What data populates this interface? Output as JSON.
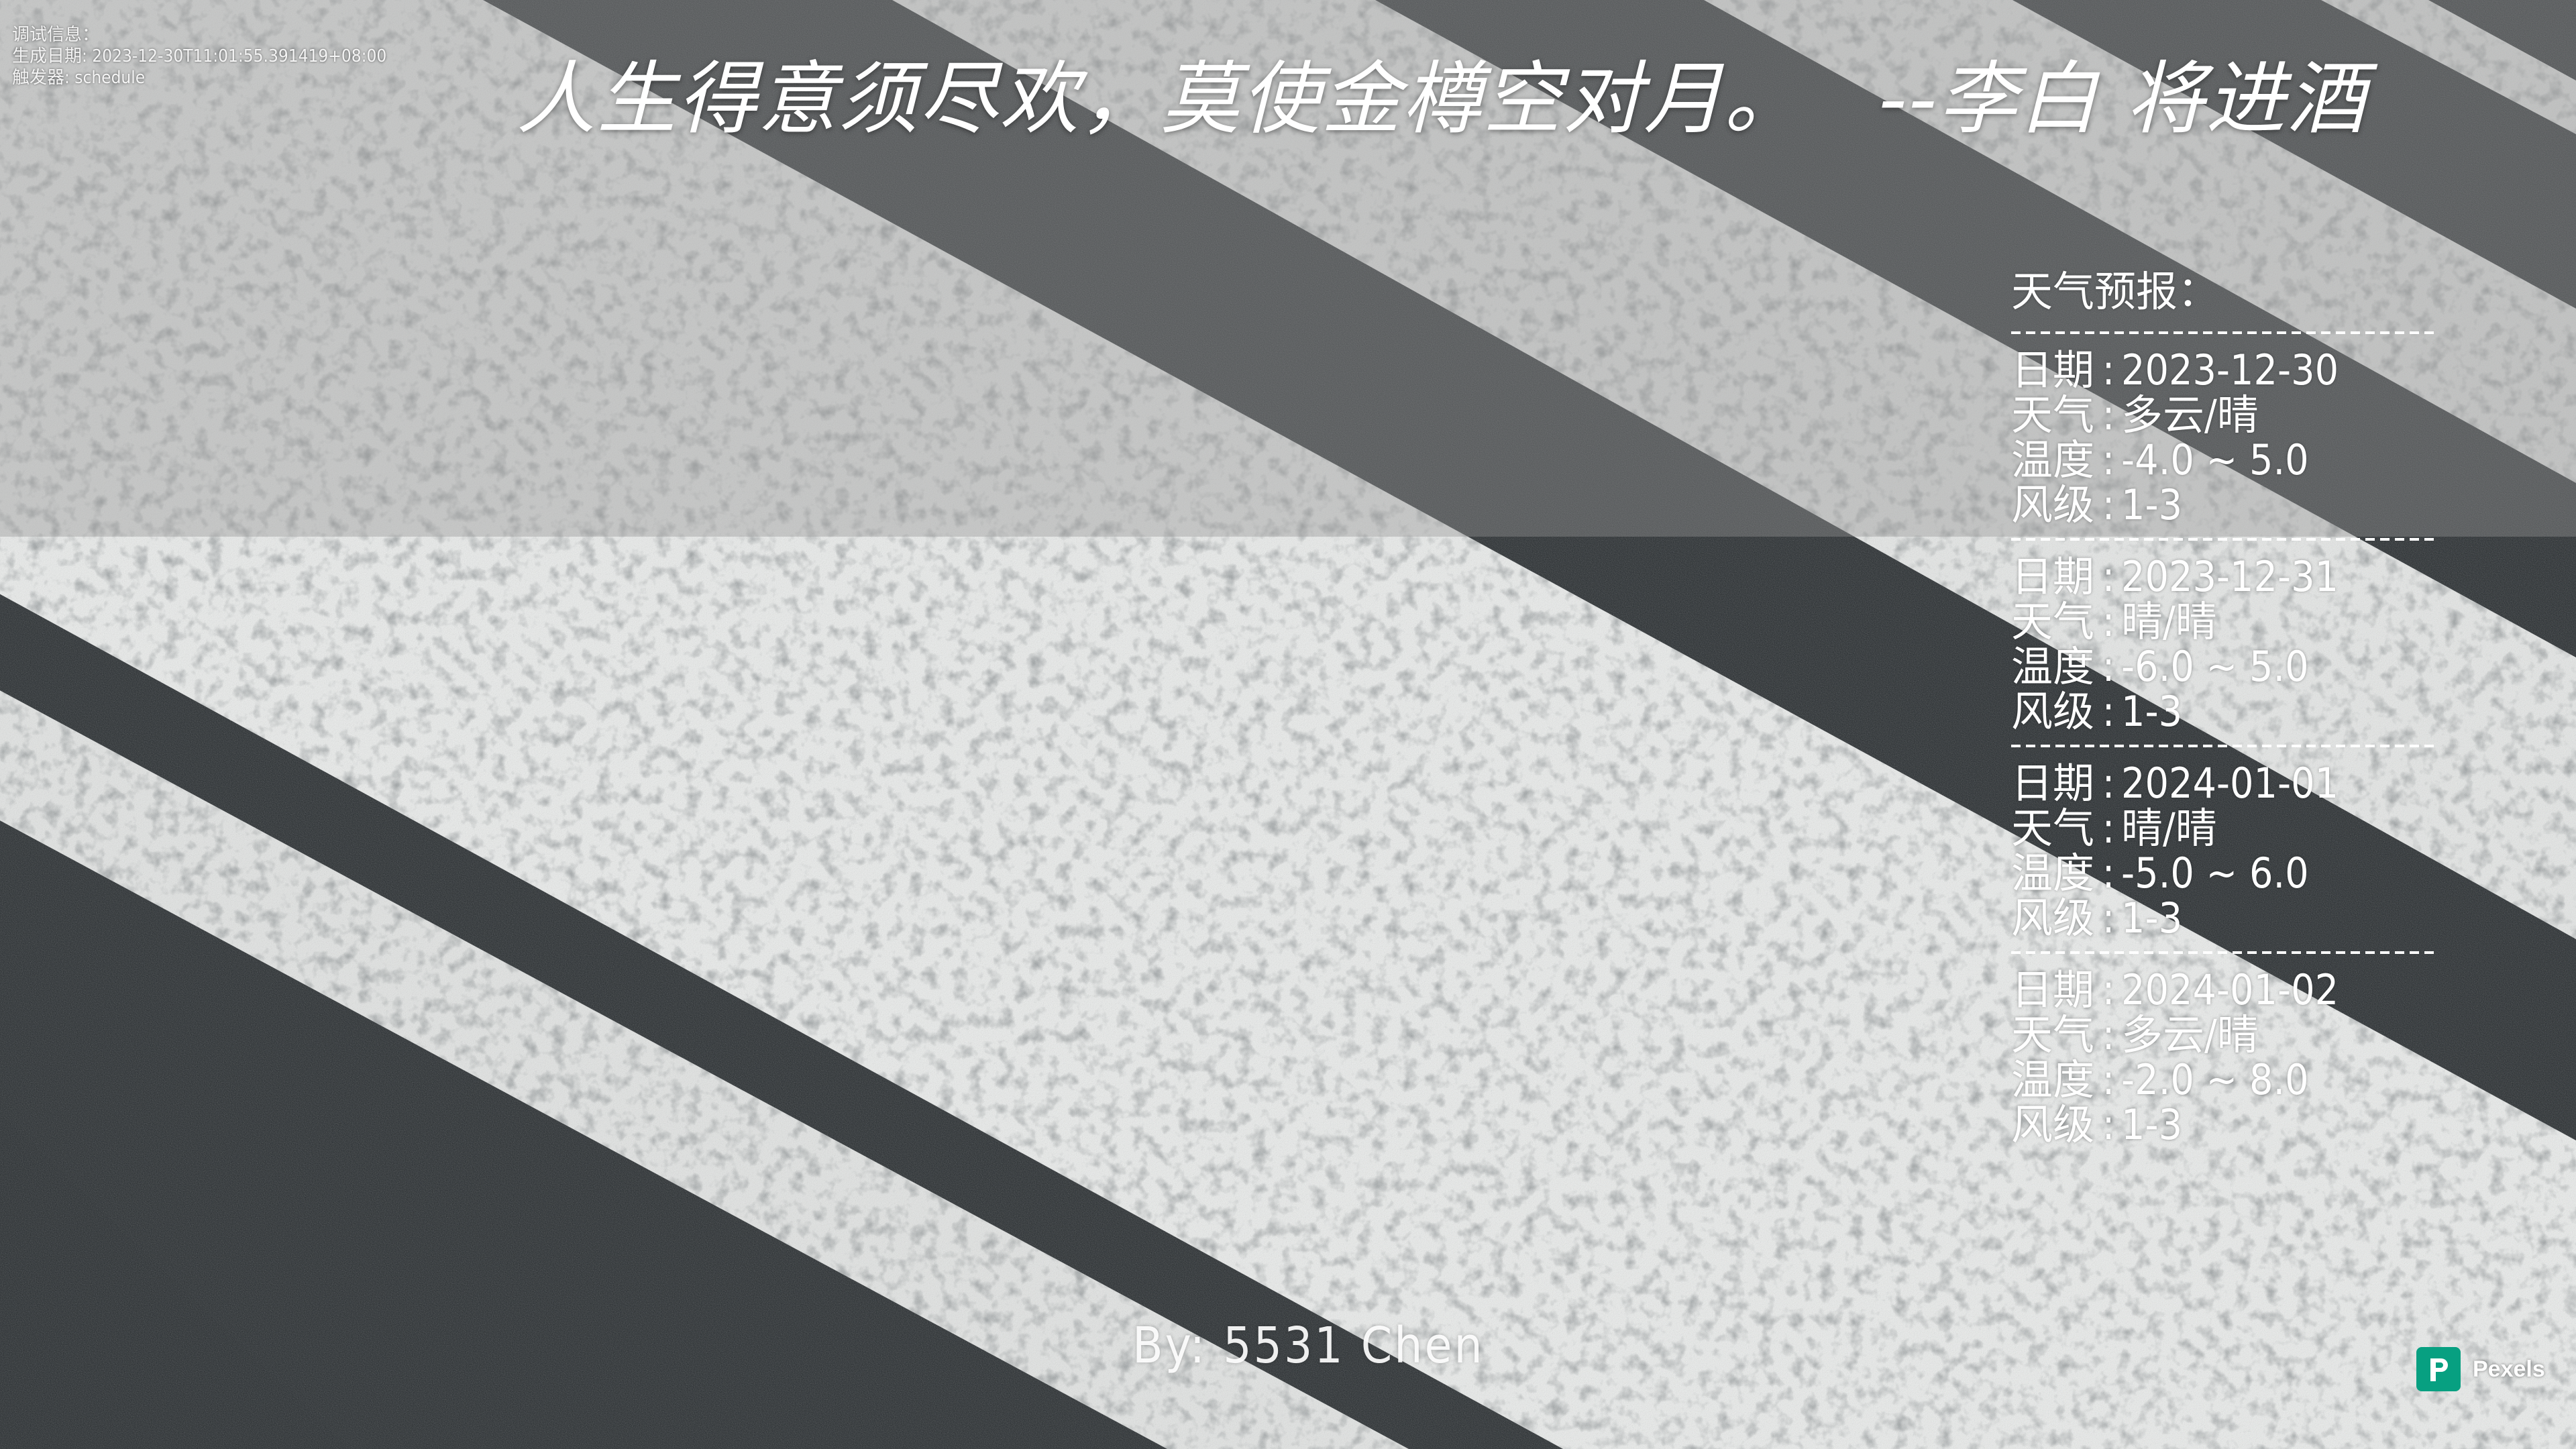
{
  "debug": {
    "line1": "调试信息：",
    "line2": "生成日期: 2023-12-30T11:01:55.391419+08:00",
    "line3": "触发器: schedule"
  },
  "quote": {
    "text": "人生得意须尽欢，莫使金樽空对月。",
    "attribution": "--李白 将进酒"
  },
  "weather": {
    "heading": "天气预报：",
    "labels": {
      "date": "日期",
      "weather": "天气",
      "temperature": "温度",
      "wind": "风级",
      "separator": ":"
    },
    "days": [
      {
        "date": "2023-12-30",
        "weather": "多云/晴",
        "temperature": "-4.0 ~ 5.0",
        "wind": "1-3"
      },
      {
        "date": "2023-12-31",
        "weather": "晴/晴",
        "temperature": "-6.0 ~ 5.0",
        "wind": "1-3"
      },
      {
        "date": "2024-01-01",
        "weather": "晴/晴",
        "temperature": "-5.0 ~ 6.0",
        "wind": "1-3"
      },
      {
        "date": "2024-01-02",
        "weather": "多云/晴",
        "temperature": "-2.0 ~ 8.0",
        "wind": "1-3"
      }
    ]
  },
  "author": {
    "text": "By: 5531 Chen"
  },
  "watermark": {
    "brand": "Pexels",
    "logo_color": "#07a081"
  },
  "colors": {
    "asphalt": "#23282b",
    "stripe": "#e9ebea",
    "text": "#ffffff"
  }
}
